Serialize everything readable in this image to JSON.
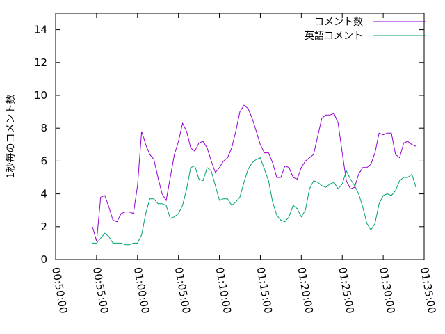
{
  "chart_data": {
    "type": "line",
    "title": "",
    "xlabel": "",
    "ylabel": "1秒毎のコメント数",
    "ylim": [
      0,
      15
    ],
    "yticks": [
      0,
      2,
      4,
      6,
      8,
      10,
      12,
      14
    ],
    "xlim": [
      "00:50:00",
      "01:35:00"
    ],
    "xticks": [
      "00:50:00",
      "00:55:00",
      "01:00:00",
      "01:05:00",
      "01:10:00",
      "01:15:00",
      "01:20:00",
      "01:25:00",
      "01:30:00",
      "01:35:00"
    ],
    "grid": false,
    "legend_position": "top-right",
    "x": [
      "00:54:30",
      "00:55:00",
      "00:55:30",
      "00:56:00",
      "00:56:30",
      "00:57:00",
      "00:57:30",
      "00:58:00",
      "00:58:30",
      "00:59:00",
      "00:59:30",
      "01:00:00",
      "01:00:30",
      "01:01:00",
      "01:01:30",
      "01:02:00",
      "01:02:30",
      "01:03:00",
      "01:03:30",
      "01:04:00",
      "01:04:30",
      "01:05:00",
      "01:05:30",
      "01:06:00",
      "01:06:30",
      "01:07:00",
      "01:07:30",
      "01:08:00",
      "01:08:30",
      "01:09:00",
      "01:09:30",
      "01:10:00",
      "01:10:30",
      "01:11:00",
      "01:11:30",
      "01:12:00",
      "01:12:30",
      "01:13:00",
      "01:13:30",
      "01:14:00",
      "01:14:30",
      "01:15:00",
      "01:15:30",
      "01:16:00",
      "01:16:30",
      "01:17:00",
      "01:17:30",
      "01:18:00",
      "01:18:30",
      "01:19:00",
      "01:19:30",
      "01:20:00",
      "01:20:30",
      "01:21:00",
      "01:21:30",
      "01:22:00",
      "01:22:30",
      "01:23:00",
      "01:23:30",
      "01:24:00",
      "01:24:30",
      "01:25:00",
      "01:25:30",
      "01:26:00",
      "01:26:30",
      "01:27:00",
      "01:27:30",
      "01:28:00",
      "01:28:30",
      "01:29:00",
      "01:29:30",
      "01:30:00",
      "01:30:30",
      "01:31:00",
      "01:31:30",
      "01:32:00",
      "01:32:30",
      "01:33:00",
      "01:33:30",
      "01:34:00"
    ],
    "series": [
      {
        "name": "コメント数",
        "color": "#9400d3",
        "values": [
          2.0,
          1.1,
          3.8,
          3.9,
          3.2,
          2.4,
          2.3,
          2.8,
          2.9,
          2.9,
          2.8,
          4.5,
          7.8,
          7.0,
          6.4,
          6.1,
          5.0,
          4.0,
          3.6,
          5.0,
          6.4,
          7.2,
          8.3,
          7.8,
          6.8,
          6.6,
          7.1,
          7.2,
          6.8,
          6.0,
          5.3,
          5.6,
          6.0,
          6.2,
          6.8,
          7.8,
          9.0,
          9.4,
          9.2,
          8.6,
          7.8,
          7.0,
          6.5,
          6.5,
          5.9,
          5.0,
          5.0,
          5.7,
          5.6,
          5.0,
          4.9,
          5.6,
          6.0,
          6.2,
          6.4,
          7.5,
          8.6,
          8.8,
          8.8,
          8.9,
          8.3,
          6.5,
          4.8,
          4.3,
          4.4,
          5.2,
          5.6,
          5.6,
          5.8,
          6.5,
          7.7,
          7.6,
          7.7,
          7.7,
          6.4,
          6.2,
          7.1,
          7.2,
          7.0,
          6.9
        ]
      },
      {
        "name": "英語コメント",
        "color": "#009e73",
        "values": [
          1.0,
          1.0,
          1.3,
          1.6,
          1.4,
          1.0,
          1.0,
          1.0,
          0.9,
          0.9,
          1.0,
          1.0,
          1.5,
          2.8,
          3.7,
          3.7,
          3.4,
          3.4,
          3.3,
          2.5,
          2.6,
          2.8,
          3.3,
          4.3,
          5.6,
          5.7,
          4.9,
          4.8,
          5.6,
          5.4,
          4.5,
          3.6,
          3.7,
          3.7,
          3.3,
          3.5,
          3.8,
          4.7,
          5.5,
          5.9,
          6.1,
          6.2,
          5.5,
          4.8,
          3.5,
          2.7,
          2.4,
          2.3,
          2.6,
          3.3,
          3.1,
          2.6,
          3.0,
          4.3,
          4.8,
          4.7,
          4.5,
          4.4,
          4.6,
          4.7,
          4.3,
          4.6,
          5.4,
          4.9,
          4.5,
          4.0,
          3.2,
          2.2,
          1.8,
          2.2,
          3.4,
          3.9,
          4.0,
          3.9,
          4.2,
          4.8,
          5.0,
          5.0,
          5.2,
          4.4
        ]
      }
    ]
  }
}
